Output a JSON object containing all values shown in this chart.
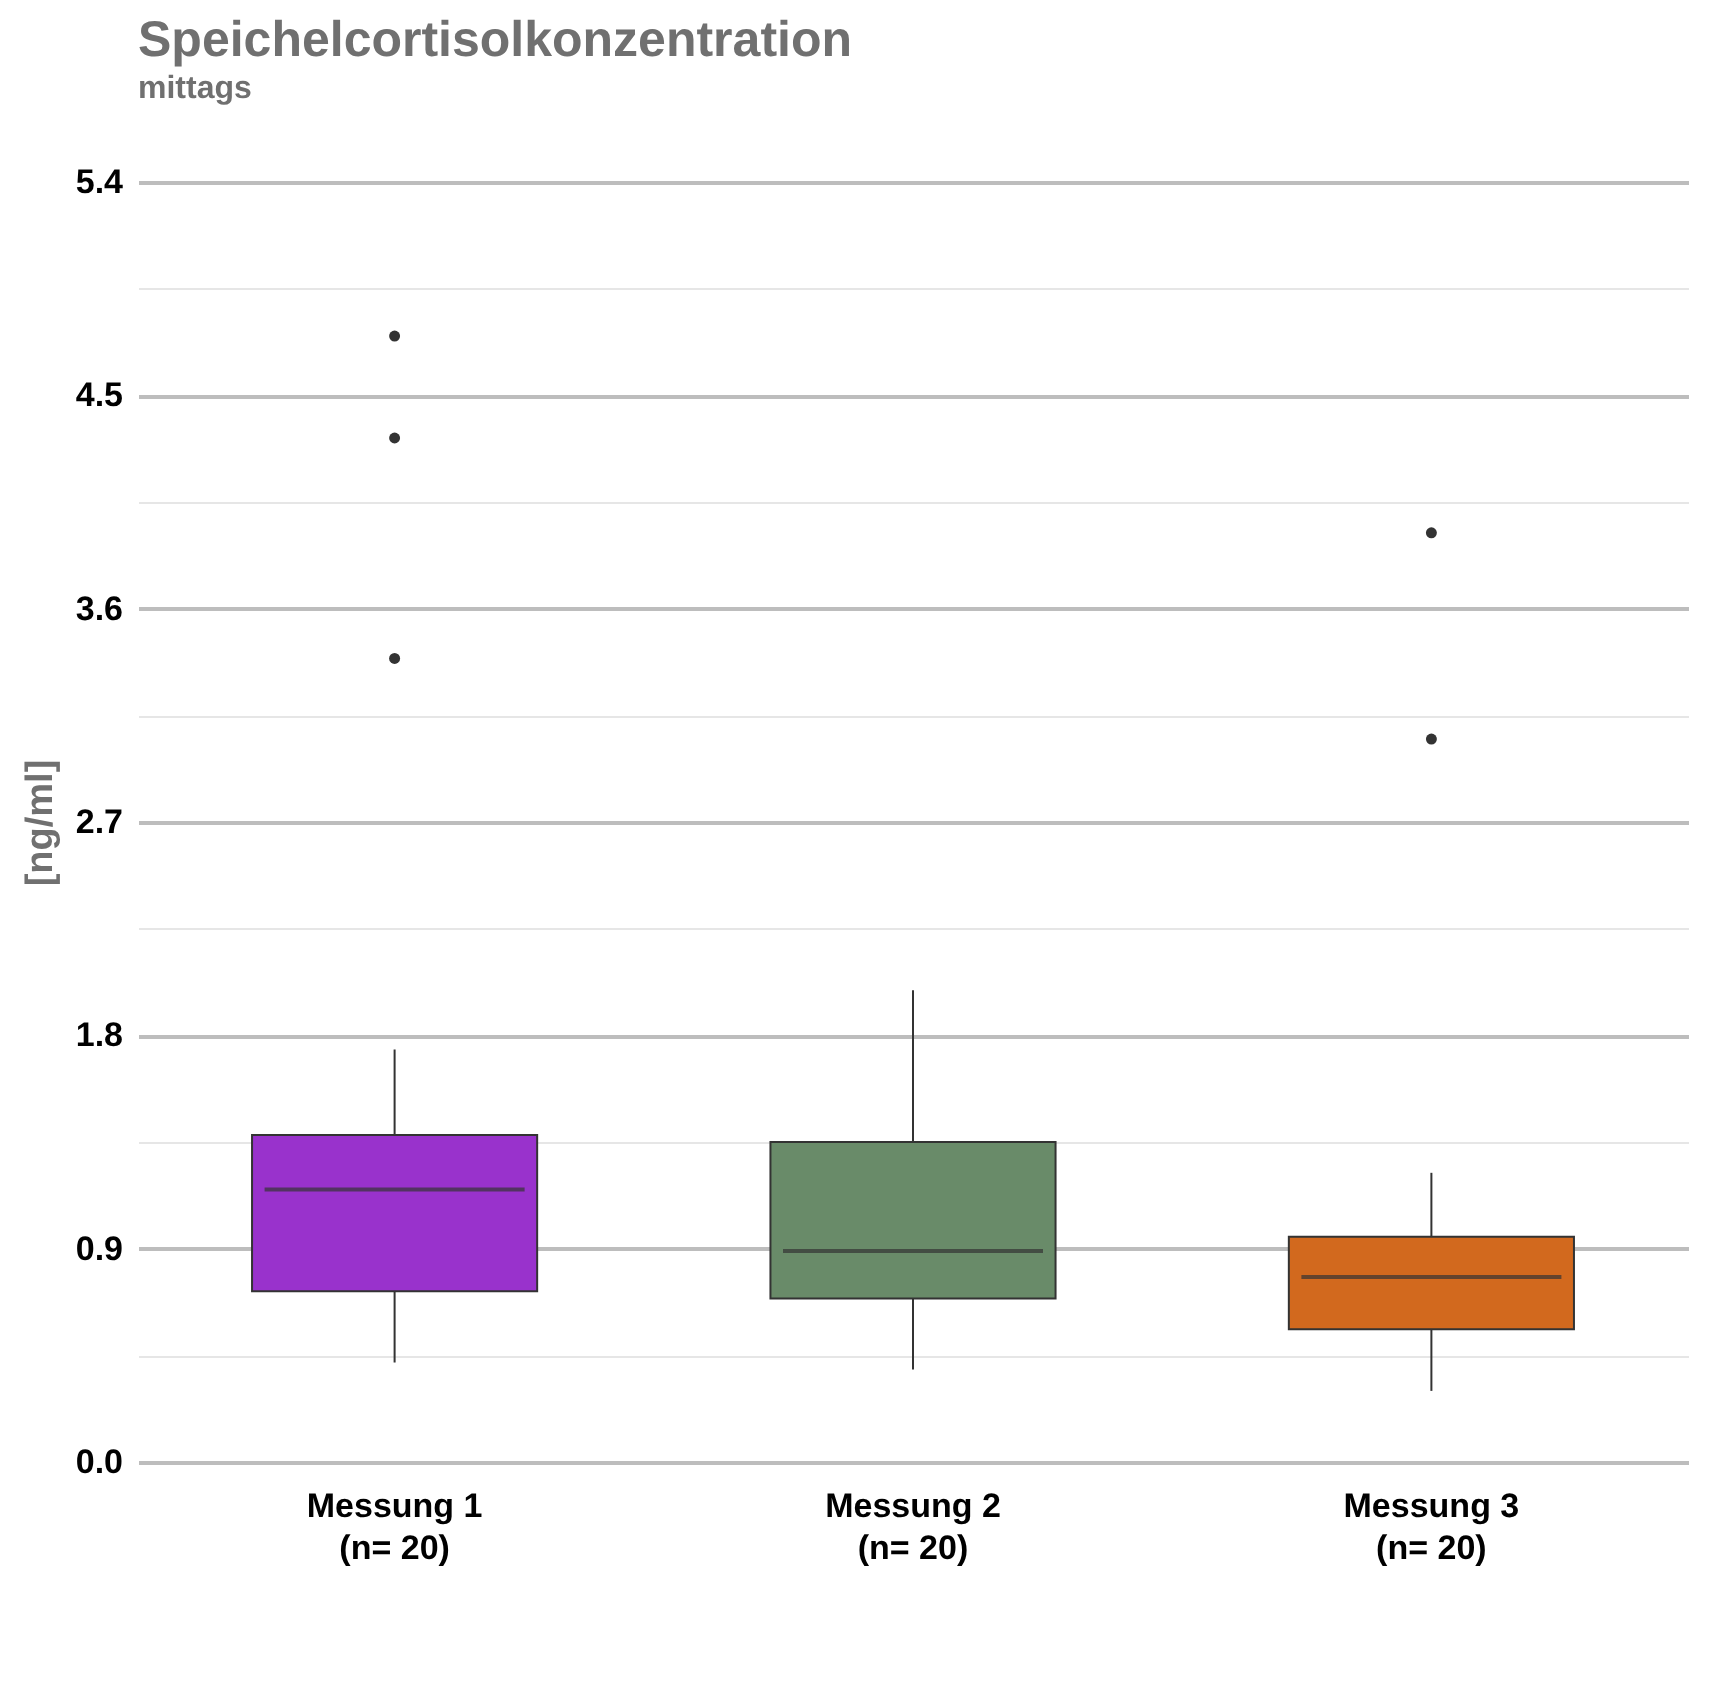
{
  "chart_data": {
    "type": "box",
    "title": "Speichelcortisolkonzentration",
    "subtitle": "mittags",
    "ylabel": "[ng/ml]",
    "categories": [
      "Messung 1\n(n= 20)",
      "Messung 2\n(n= 20)",
      "Messung 3\n(n= 20)"
    ],
    "colors": [
      "#9932cc",
      "#698b69",
      "#d2691e"
    ],
    "boxes": [
      {
        "low": 0.42,
        "q1": 0.72,
        "median": 1.15,
        "q3": 1.38,
        "high": 1.74,
        "outliers": [
          3.39,
          4.32,
          4.75
        ]
      },
      {
        "low": 0.39,
        "q1": 0.69,
        "median": 0.89,
        "q3": 1.35,
        "high": 1.99
      },
      {
        "low": 0.3,
        "q1": 0.56,
        "median": 0.78,
        "q3": 0.95,
        "high": 1.22,
        "outliers": [
          3.05,
          3.92
        ]
      }
    ],
    "ylim": [
      0,
      5.4
    ],
    "yticks": [
      {
        "value": 0,
        "label": "0.0"
      },
      {
        "value": 0.45,
        "label": null
      },
      0.9,
      {
        "value": 1.35,
        "label": null
      },
      1.8,
      {
        "value": 2.25,
        "label": null
      },
      2.7,
      {
        "value": 3.15,
        "label": null
      },
      3.6,
      {
        "value": 4.05,
        "label": null
      },
      4.5,
      {
        "value": 4.95,
        "label": null
      },
      5.4
    ],
    "grid": true,
    "legend": false
  }
}
